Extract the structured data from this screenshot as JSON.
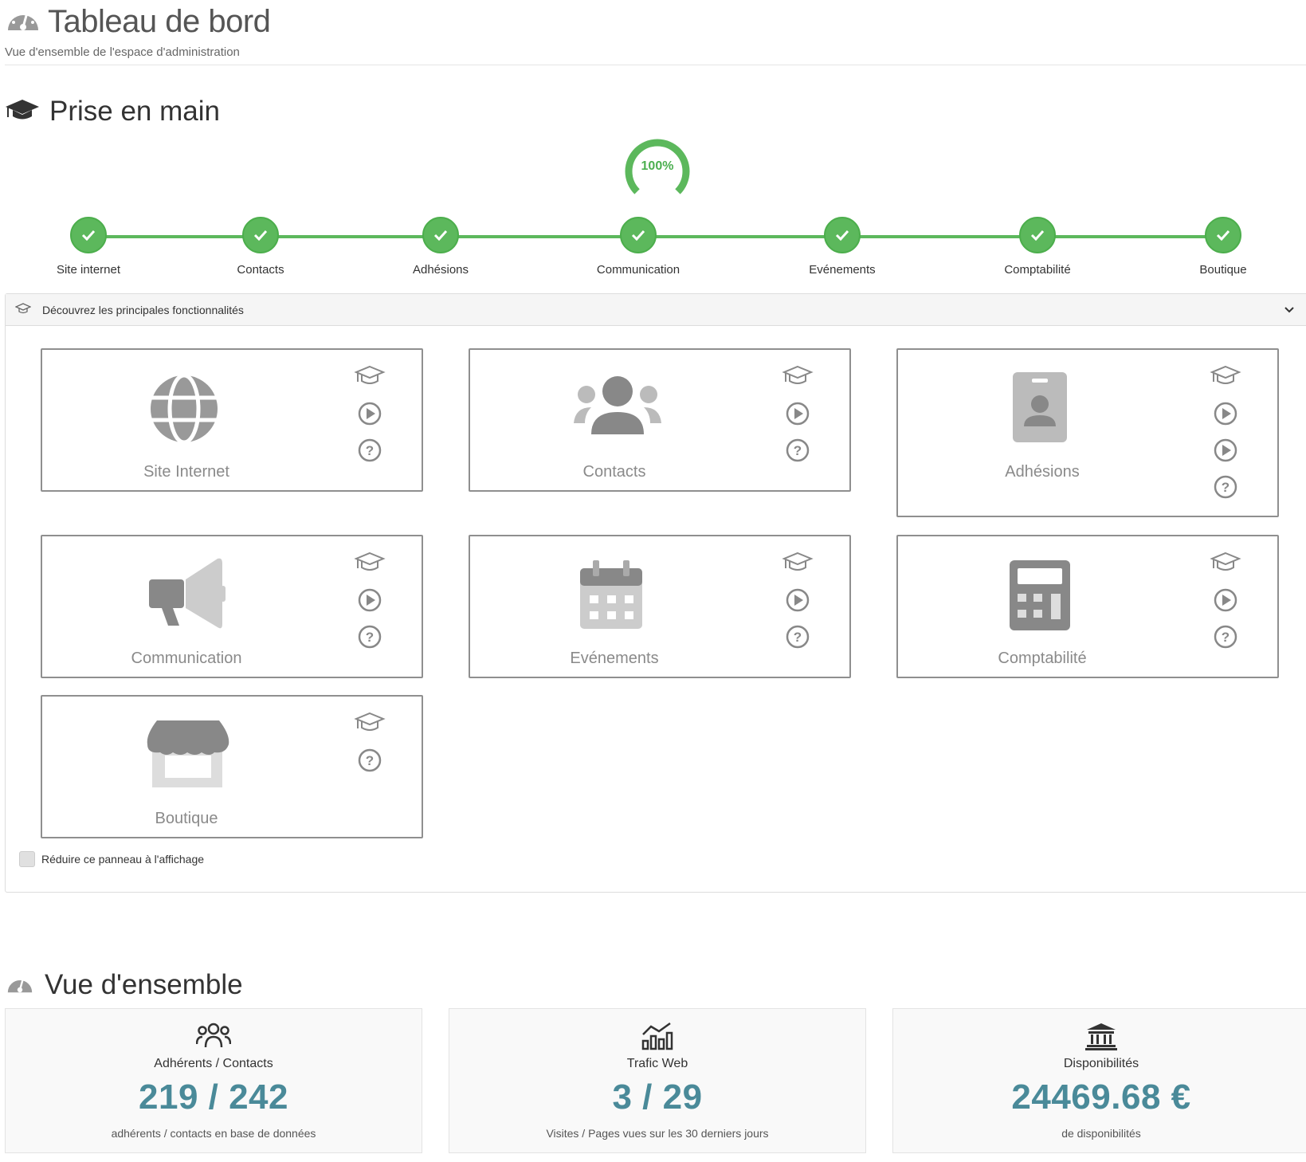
{
  "header": {
    "title": "Tableau de bord",
    "subtitle": "Vue d'ensemble de l'espace d'administration"
  },
  "getting_started": {
    "title": "Prise en main",
    "progress_percent": 100,
    "progress_label": "100%",
    "steps": [
      {
        "label": "Site internet",
        "done": true
      },
      {
        "label": "Contacts",
        "done": true
      },
      {
        "label": "Adhésions",
        "done": true
      },
      {
        "label": "Communication",
        "done": true
      },
      {
        "label": "Evénements",
        "done": true
      },
      {
        "label": "Comptabilité",
        "done": true
      },
      {
        "label": "Boutique",
        "done": true
      }
    ],
    "panel_title": "Découvrez les principales fonctionnalités",
    "cards": [
      {
        "label": "Site Internet",
        "icon": "globe-icon"
      },
      {
        "label": "Contacts",
        "icon": "users-icon"
      },
      {
        "label": "Adhésions",
        "icon": "id-badge-icon"
      },
      {
        "label": "Communication",
        "icon": "megaphone-icon"
      },
      {
        "label": "Evénements",
        "icon": "calendar-icon"
      },
      {
        "label": "Comptabilité",
        "icon": "calculator-icon"
      },
      {
        "label": "Boutique",
        "icon": "store-icon"
      }
    ],
    "collapse_label": "Réduire ce panneau à l'affichage"
  },
  "overview": {
    "title": "Vue d'ensemble",
    "stats": [
      {
        "label": "Adhérents / Contacts",
        "value": "219 / 242",
        "desc": "adhérents / contacts en base de données",
        "icon": "users-icon"
      },
      {
        "label": "Trafic Web",
        "value": "3 / 29",
        "desc": "Visites / Pages vues sur les 30 derniers jours",
        "icon": "chart-icon"
      },
      {
        "label": "Disponibilités",
        "value": "24469.68 €",
        "desc": "de disponibilités",
        "icon": "bank-icon"
      }
    ]
  },
  "colors": {
    "success": "#5cb85c",
    "stat_value": "#4a8a99",
    "icon_gray": "#8a8a8a"
  }
}
